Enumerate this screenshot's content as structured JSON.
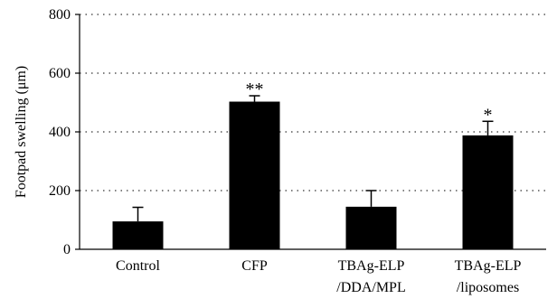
{
  "chart_data": {
    "type": "bar",
    "ylabel": "Footpad swelling (μm)",
    "ylim": [
      0,
      800
    ],
    "yticks": [
      "0",
      "200",
      "400",
      "600",
      "800"
    ],
    "grid": "horizontal dotted",
    "categories": [
      [
        "Control"
      ],
      [
        "CFP"
      ],
      [
        "TBAg-ELP",
        "/DDA/MPL"
      ],
      [
        "TBAg-ELP",
        "/liposomes"
      ]
    ],
    "values": [
      95,
      503,
      145,
      388
    ],
    "errors": [
      48,
      20,
      55,
      48
    ],
    "significance": [
      "",
      "**",
      "",
      "*"
    ],
    "bar_color": "#000000"
  }
}
